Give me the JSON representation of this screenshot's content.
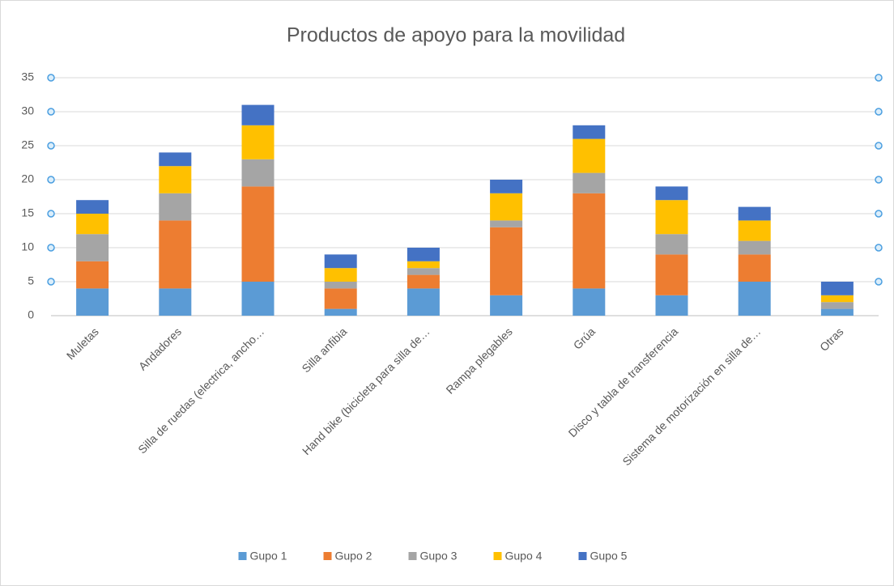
{
  "chart_data": {
    "type": "bar",
    "stacked": true,
    "title": "Productos de apoyo para la movilidad",
    "categories": [
      "Muletas",
      "Andadores",
      "Silla de ruedas (electrica, ancho…",
      "Silla anfibia",
      "Hand bike (bicicleta para silla de…",
      "Rampa plegables",
      "Grúa",
      "Disco y tabla de transferencia",
      "Sistema de motorización en silla de…",
      "Otras"
    ],
    "series": [
      {
        "name": "Gupo 1",
        "color": "#5b9bd5",
        "values": [
          4,
          4,
          5,
          1,
          4,
          3,
          4,
          3,
          5,
          1
        ]
      },
      {
        "name": "Gupo 2",
        "color": "#ed7d31",
        "values": [
          4,
          10,
          14,
          3,
          2,
          10,
          14,
          6,
          4,
          0
        ]
      },
      {
        "name": "Gupo 3",
        "color": "#a5a5a5",
        "values": [
          4,
          4,
          4,
          1,
          1,
          1,
          3,
          3,
          2,
          1
        ]
      },
      {
        "name": "Gupo 4",
        "color": "#ffc000",
        "values": [
          3,
          4,
          5,
          2,
          1,
          4,
          5,
          5,
          3,
          1
        ]
      },
      {
        "name": "Gupo 5",
        "color": "#4472c4",
        "values": [
          2,
          2,
          3,
          2,
          2,
          2,
          2,
          2,
          2,
          2
        ]
      }
    ],
    "ylim": [
      0,
      35
    ],
    "yticks": [
      0,
      5,
      10,
      15,
      20,
      25,
      30,
      35
    ],
    "grid": true,
    "legend": "bottom"
  }
}
